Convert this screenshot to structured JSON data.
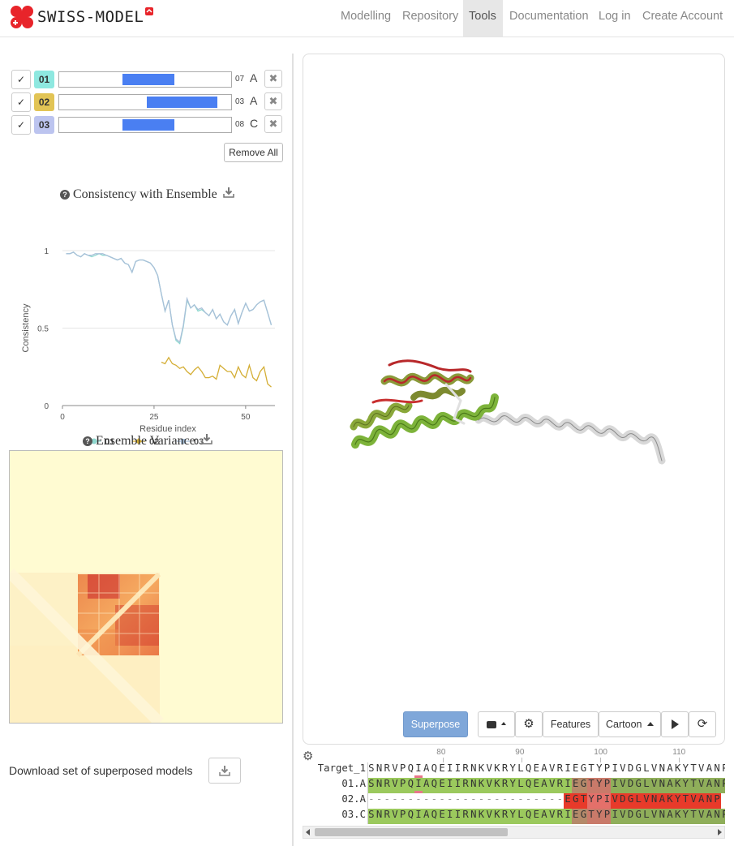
{
  "brand": {
    "name": "SWISS-MODEL",
    "color": "#e8242a"
  },
  "nav": {
    "items": [
      {
        "label": "Modelling"
      },
      {
        "label": "Repository"
      },
      {
        "label": "Tools"
      },
      {
        "label": "Documentation"
      },
      {
        "label": "Log in"
      },
      {
        "label": "Create Account"
      }
    ],
    "active": "Tools"
  },
  "models": [
    {
      "check": "✓",
      "id": "01",
      "color": "#8ee8e0",
      "num": "07",
      "chain": "A",
      "coverage": [
        0.37,
        0.67
      ]
    },
    {
      "check": "✓",
      "id": "02",
      "color": "#e2c455",
      "num": "03",
      "chain": "A",
      "coverage": [
        0.51,
        0.92
      ]
    },
    {
      "check": "✓",
      "id": "03",
      "color": "#bcc4ef",
      "num": "08",
      "chain": "C",
      "coverage": [
        0.37,
        0.67
      ]
    }
  ],
  "remove_all": "Remove All",
  "consistency": {
    "title": "Consistency with Ensemble",
    "help_icon": "question-circle-icon",
    "download_icon": "download-icon"
  },
  "chart_data": {
    "type": "line",
    "title": "Consistency with Ensemble",
    "xlabel": "Residue index",
    "ylabel": "Consistency",
    "xlim": [
      0,
      58
    ],
    "ylim": [
      0,
      1
    ],
    "xticks": [
      "0",
      "25",
      "50"
    ],
    "yticks": [
      "0",
      "0.5",
      "1"
    ],
    "legend_position": "bottom",
    "series": [
      {
        "name": "01",
        "color": "#8fd8cf",
        "x": [
          1,
          2,
          3,
          4,
          5,
          6,
          7,
          8,
          9,
          10,
          11,
          12,
          13,
          14,
          15,
          16,
          17,
          18,
          19,
          20,
          21,
          22,
          23,
          24,
          25,
          26,
          27,
          28,
          29,
          30,
          31,
          32,
          33,
          34,
          35,
          36,
          37,
          38,
          39,
          40,
          41,
          42,
          43,
          44,
          45,
          46,
          47,
          48,
          49,
          50,
          51,
          52,
          53,
          54,
          55,
          56,
          57
        ],
        "y": [
          0.98,
          0.98,
          0.99,
          0.97,
          0.96,
          0.98,
          0.97,
          0.96,
          0.97,
          0.98,
          0.97,
          0.97,
          0.96,
          0.95,
          0.94,
          0.95,
          0.92,
          0.91,
          0.86,
          0.93,
          0.94,
          0.94,
          0.93,
          0.92,
          0.89,
          0.84,
          0.72,
          0.61,
          0.68,
          0.52,
          0.42,
          0.4,
          0.51,
          0.68,
          0.63,
          0.65,
          0.61,
          0.62,
          0.6,
          0.58,
          0.62,
          0.56,
          0.59,
          0.54,
          0.52,
          0.58,
          0.62,
          0.53,
          0.6,
          0.66,
          0.61,
          0.62,
          0.65,
          0.67,
          0.68,
          0.6,
          0.52
        ]
      },
      {
        "name": "02",
        "color": "#d4ae35",
        "x": [
          27,
          28,
          29,
          30,
          31,
          32,
          33,
          34,
          35,
          36,
          37,
          38,
          39,
          40,
          41,
          42,
          43,
          44,
          45,
          46,
          47,
          48,
          49,
          50,
          51,
          52,
          53,
          54,
          55,
          56,
          57
        ],
        "y": [
          0.28,
          0.27,
          0.31,
          0.27,
          0.26,
          0.24,
          0.25,
          0.22,
          0.2,
          0.23,
          0.25,
          0.22,
          0.18,
          0.18,
          0.19,
          0.17,
          0.26,
          0.24,
          0.22,
          0.22,
          0.18,
          0.25,
          0.2,
          0.18,
          0.26,
          0.18,
          0.16,
          0.22,
          0.25,
          0.14,
          0.12
        ]
      },
      {
        "name": "03",
        "color": "#a9c0d9",
        "x": [
          1,
          2,
          3,
          4,
          5,
          6,
          7,
          8,
          9,
          10,
          11,
          12,
          13,
          14,
          15,
          16,
          17,
          18,
          19,
          20,
          21,
          22,
          23,
          24,
          25,
          26,
          27,
          28,
          29,
          30,
          31,
          32,
          33,
          34,
          35,
          36,
          37,
          38,
          39,
          40,
          41,
          42,
          43,
          44,
          45,
          46,
          47,
          48,
          49,
          50,
          51,
          52,
          53,
          54,
          55,
          56,
          57
        ],
        "y": [
          0.98,
          0.98,
          0.99,
          0.97,
          0.96,
          0.98,
          0.97,
          0.97,
          0.98,
          0.98,
          0.98,
          0.97,
          0.96,
          0.95,
          0.94,
          0.95,
          0.92,
          0.91,
          0.86,
          0.93,
          0.94,
          0.94,
          0.93,
          0.92,
          0.89,
          0.84,
          0.72,
          0.61,
          0.68,
          0.52,
          0.43,
          0.41,
          0.52,
          0.69,
          0.63,
          0.65,
          0.62,
          0.63,
          0.6,
          0.58,
          0.62,
          0.56,
          0.59,
          0.54,
          0.52,
          0.58,
          0.62,
          0.53,
          0.6,
          0.66,
          0.61,
          0.62,
          0.65,
          0.67,
          0.68,
          0.6,
          0.52
        ]
      }
    ]
  },
  "variance": {
    "title": "Ensemble Variance",
    "help_icon": "question-circle-icon",
    "download_icon": "download-icon"
  },
  "download_models": {
    "label": "Download set of superposed models",
    "icon": "download-icon"
  },
  "viewer_toolbar": {
    "superpose": "Superpose",
    "camera_icon": "camera-icon",
    "settings_icon": "gear-icon",
    "features": "Features",
    "cartoon": "Cartoon",
    "play_icon": "play-icon",
    "refresh_icon": "refresh-icon"
  },
  "alignment": {
    "settings_icon": "gear-icon",
    "ticks": [
      "80",
      "90",
      "100",
      "110"
    ],
    "rows": [
      {
        "label": "Target_1",
        "seq": "SNRVPQIAQEIIRNKVKRYLQEAVRIEGTYPIVDGLVNAKYTVANP"
      },
      {
        "label": "01.A",
        "seq": "SNRVPQIAQEIIRNKVKRYLQEAVRIEGTYPIVDGLVNAKYTVANP"
      },
      {
        "label": "02.A",
        "seq": "-------------------------EGTYPIVDGLVNAKYTVANP"
      },
      {
        "label": "03.C",
        "seq": "SNRVPQIAQEIIRNKVKRYLQEAVRIEGTYPIVDGLVNAKYTVANP"
      }
    ]
  }
}
